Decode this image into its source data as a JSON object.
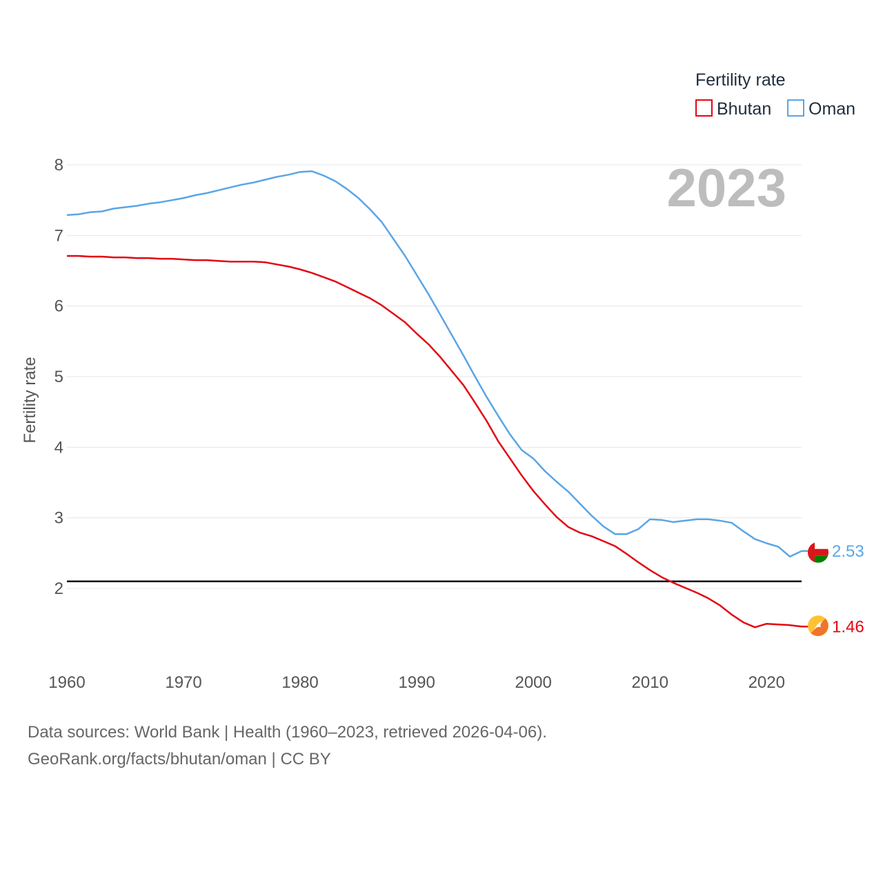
{
  "chart_data": {
    "type": "line",
    "ylabel": "Fertility rate",
    "xlabel": "",
    "year_label": "2023",
    "legend_title": "Fertility rate",
    "xlim": [
      1960,
      2023
    ],
    "ylim": [
      1,
      8.3
    ],
    "x_ticks": [
      1960,
      1970,
      1980,
      1990,
      2000,
      2010,
      2020
    ],
    "y_ticks": [
      2,
      3,
      4,
      5,
      6,
      7,
      8
    ],
    "reference_line": 2.1,
    "x": [
      1960,
      1961,
      1962,
      1963,
      1964,
      1965,
      1966,
      1967,
      1968,
      1969,
      1970,
      1971,
      1972,
      1973,
      1974,
      1975,
      1976,
      1977,
      1978,
      1979,
      1980,
      1981,
      1982,
      1983,
      1984,
      1985,
      1986,
      1987,
      1988,
      1989,
      1990,
      1991,
      1992,
      1993,
      1994,
      1995,
      1996,
      1997,
      1998,
      1999,
      2000,
      2001,
      2002,
      2003,
      2004,
      2005,
      2006,
      2007,
      2008,
      2009,
      2010,
      2011,
      2012,
      2013,
      2014,
      2015,
      2016,
      2017,
      2018,
      2019,
      2020,
      2021,
      2022,
      2023
    ],
    "series": [
      {
        "name": "Bhutan",
        "color": "#e30613",
        "end_label": "1.46",
        "flag_icon": "bhutan-flag-icon",
        "values": [
          6.71,
          6.71,
          6.7,
          6.7,
          6.69,
          6.69,
          6.68,
          6.68,
          6.67,
          6.67,
          6.66,
          6.65,
          6.65,
          6.64,
          6.63,
          6.63,
          6.63,
          6.62,
          6.59,
          6.56,
          6.52,
          6.47,
          6.41,
          6.35,
          6.27,
          6.19,
          6.11,
          6.01,
          5.89,
          5.77,
          5.61,
          5.46,
          5.28,
          5.08,
          4.88,
          4.63,
          4.37,
          4.08,
          3.84,
          3.6,
          3.38,
          3.19,
          3.01,
          2.87,
          2.79,
          2.74,
          2.67,
          2.6,
          2.49,
          2.37,
          2.26,
          2.16,
          2.08,
          2.01,
          1.94,
          1.86,
          1.76,
          1.63,
          1.52,
          1.45,
          1.5,
          1.49,
          1.48,
          1.46
        ]
      },
      {
        "name": "Oman",
        "color": "#5aa5e6",
        "end_label": "2.53",
        "flag_icon": "oman-flag-icon",
        "values": [
          7.29,
          7.3,
          7.33,
          7.34,
          7.38,
          7.4,
          7.42,
          7.45,
          7.47,
          7.5,
          7.53,
          7.57,
          7.6,
          7.64,
          7.68,
          7.72,
          7.75,
          7.79,
          7.83,
          7.86,
          7.9,
          7.91,
          7.85,
          7.77,
          7.66,
          7.53,
          7.37,
          7.19,
          6.95,
          6.71,
          6.44,
          6.17,
          5.88,
          5.59,
          5.3,
          5.0,
          4.71,
          4.44,
          4.18,
          3.96,
          3.84,
          3.66,
          3.51,
          3.37,
          3.2,
          3.03,
          2.88,
          2.77,
          2.77,
          2.84,
          2.98,
          2.97,
          2.94,
          2.96,
          2.98,
          2.98,
          2.96,
          2.93,
          2.81,
          2.7,
          2.64,
          2.59,
          2.45,
          2.53
        ]
      }
    ]
  },
  "footer": {
    "source_line": "Data sources: World Bank | Health (1960–2023, retrieved 2026-04-06).",
    "credit_line": "GeoRank.org/facts/bhutan/oman | CC BY"
  }
}
